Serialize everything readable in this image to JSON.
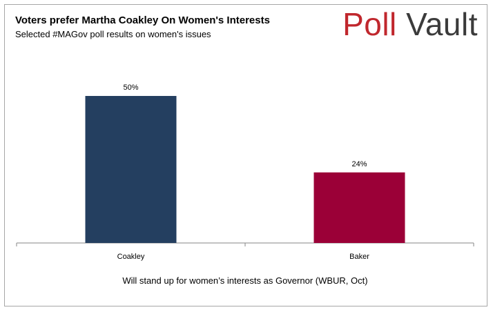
{
  "header": {
    "title": "Voters prefer Martha Coakley On Women's Interests",
    "subtitle": "Selected #MAGov poll results on women's issues",
    "logo_word1": "Poll",
    "logo_word2": "Vault"
  },
  "colors": {
    "logo_word1": "#c0272d",
    "logo_word2": "#3b3b3b",
    "coakley_bar": "#243f60",
    "baker_bar": "#9b0037"
  },
  "chart_data": {
    "type": "bar",
    "title": "Voters prefer Martha Coakley On Women's Interests",
    "subtitle": "Selected #MAGov poll results on women's issues",
    "categories": [
      "Coakley",
      "Baker"
    ],
    "values": [
      50,
      24
    ],
    "value_labels": [
      "50%",
      "24%"
    ],
    "bar_colors": [
      "#243f60",
      "#9b0037"
    ],
    "xlabel": "Will stand up for women’s interests as Governor (WBUR, Oct)",
    "ylabel": "",
    "ylim": [
      0,
      50
    ],
    "grid": false,
    "legend": "none"
  }
}
